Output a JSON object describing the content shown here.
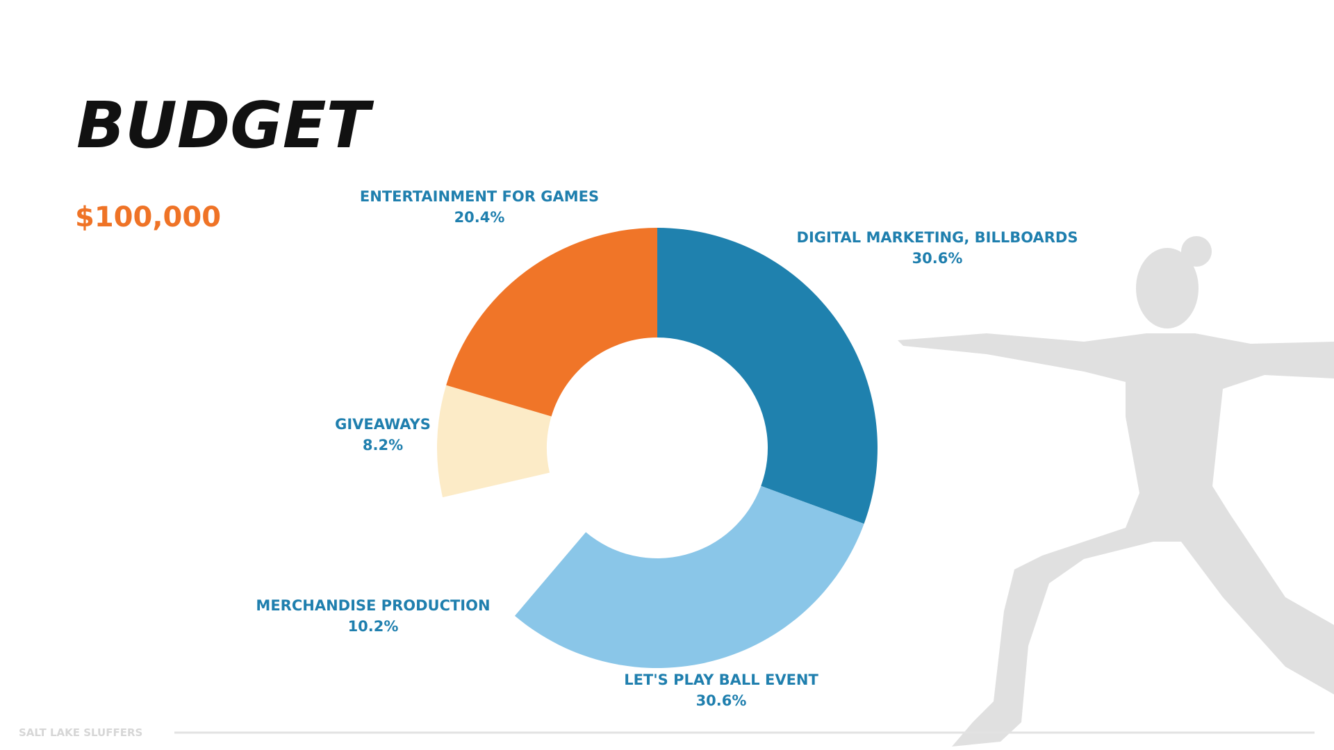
{
  "title": "BUDGET",
  "total": "$100,000",
  "footer": "SALT LAKE SLUFFERS",
  "chart_data": {
    "type": "donut",
    "categories": [
      "DIGITAL MARKETING, BILLBOARDS",
      "LET'S PLAY BALL EVENT",
      "MERCHANDISE PRODUCTION",
      "GIVEAWAYS",
      "ENTERTAINMENT FOR GAMES"
    ],
    "values": [
      30.6,
      30.6,
      10.2,
      8.2,
      20.4
    ],
    "value_labels": [
      "30.6%",
      "30.6%",
      "10.2%",
      "8.2%",
      "20.4%"
    ],
    "colors": [
      "#1f81ae",
      "#8ac6e8",
      "#ffffff",
      "#fcebc7",
      "#f07528"
    ]
  }
}
